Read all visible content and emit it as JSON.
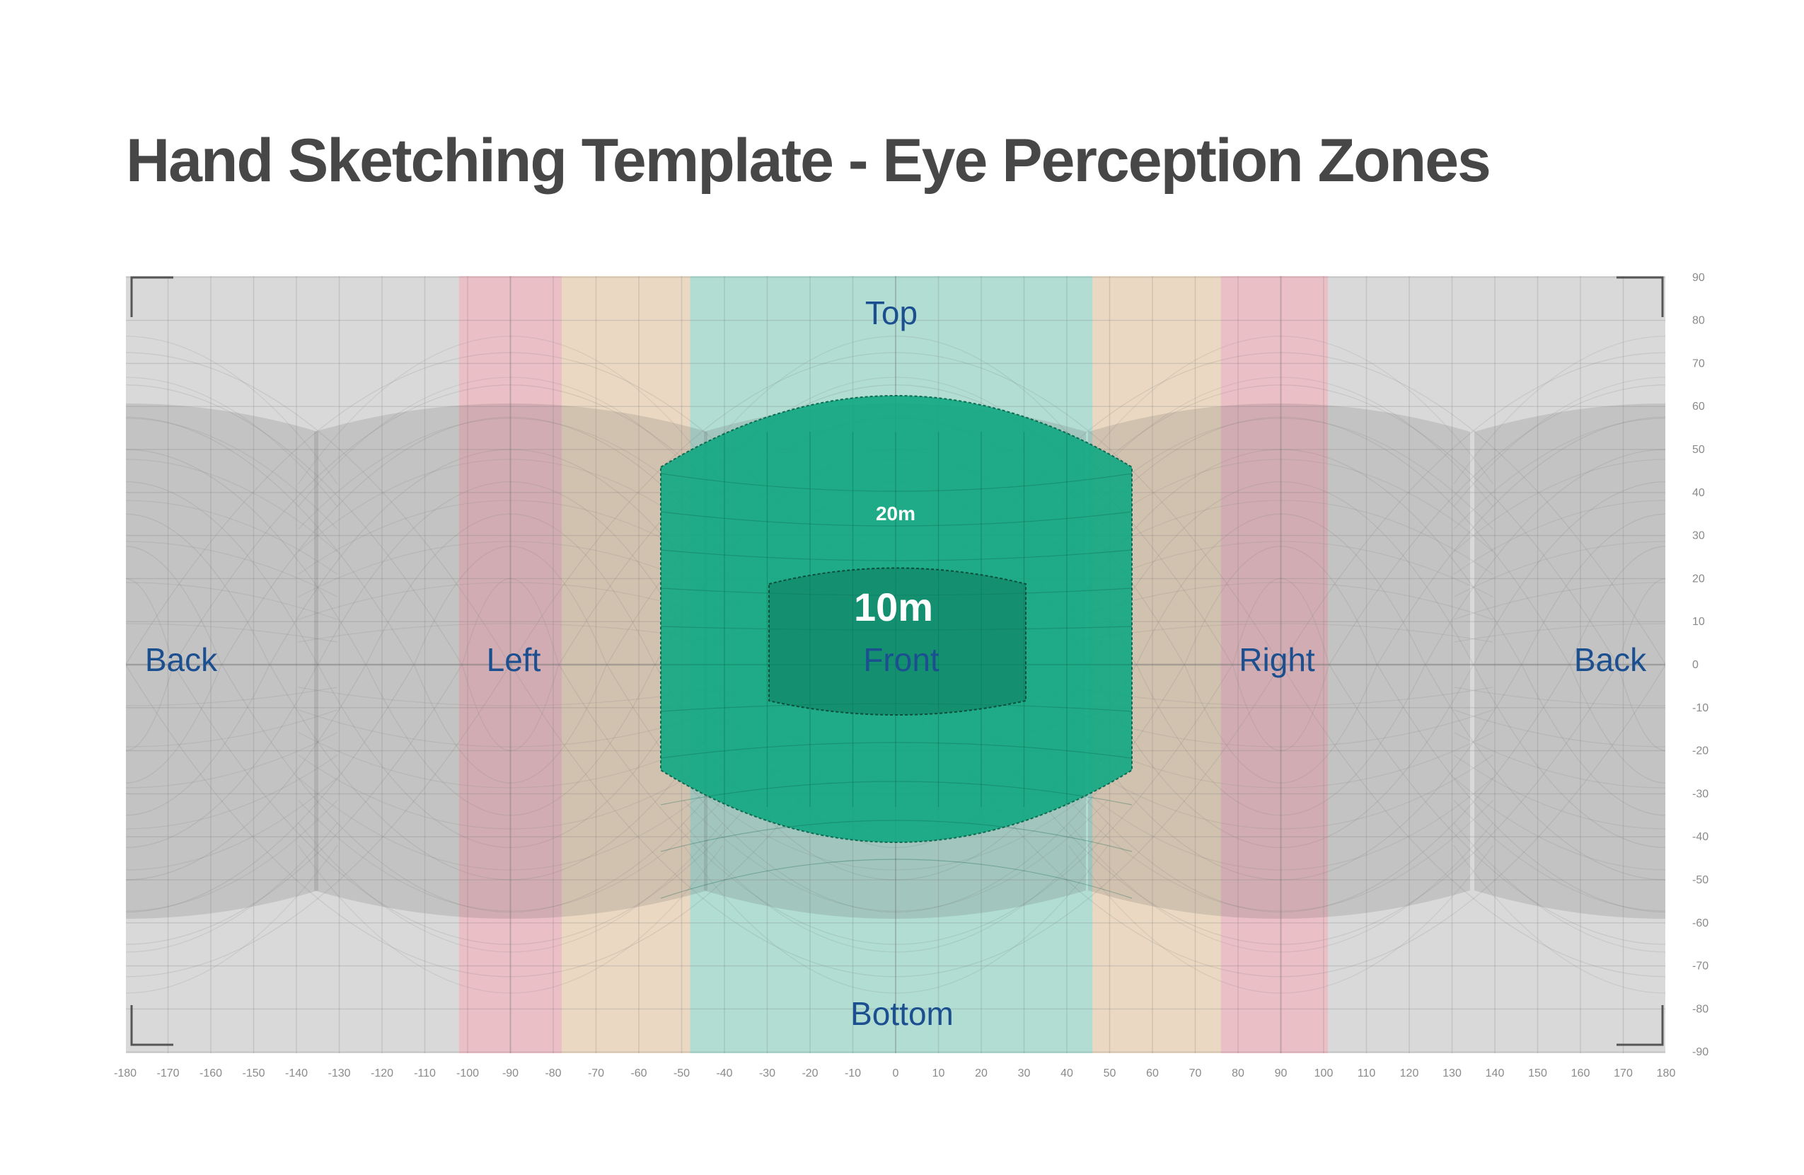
{
  "title": "Hand Sketching Template - Eye Perception Zones",
  "zones": {
    "top": "Top",
    "bottom": "Bottom",
    "front": "Front",
    "left": "Left",
    "right": "Right",
    "back_left": "Back",
    "back_right": "Back"
  },
  "distances": {
    "near": "10m",
    "far": "20m"
  },
  "axes": {
    "x_ticks": [
      -180,
      -170,
      -160,
      -150,
      -140,
      -130,
      -120,
      -110,
      -100,
      -90,
      -80,
      -70,
      -60,
      -50,
      -40,
      -30,
      -20,
      -10,
      0,
      10,
      20,
      30,
      40,
      50,
      60,
      70,
      80,
      90,
      100,
      110,
      120,
      130,
      140,
      150,
      160,
      170,
      180
    ],
    "y_ticks": [
      90,
      80,
      70,
      60,
      50,
      40,
      30,
      20,
      10,
      0,
      -10,
      -20,
      -30,
      -40,
      -50,
      -60,
      -70,
      -80,
      -90
    ]
  },
  "bands": [
    {
      "name": "left-red-band",
      "from": -102,
      "to": -78,
      "color": "#f7a9b6"
    },
    {
      "name": "left-orange-band",
      "from": -78,
      "to": -48,
      "color": "#f8d7ae"
    },
    {
      "name": "front-teal-band",
      "from": -48,
      "to": 46,
      "color": "#8fe0cc"
    },
    {
      "name": "right-orange-band",
      "from": 46,
      "to": 76,
      "color": "#f8d7ae"
    },
    {
      "name": "right-red-band",
      "from": 76,
      "to": 101,
      "color": "#f7a9b6"
    }
  ],
  "colors": {
    "background_grey": "#d9d9d9",
    "accent_green": "#14a882",
    "label_blue": "#1b4f8f",
    "title_grey": "#474747"
  }
}
